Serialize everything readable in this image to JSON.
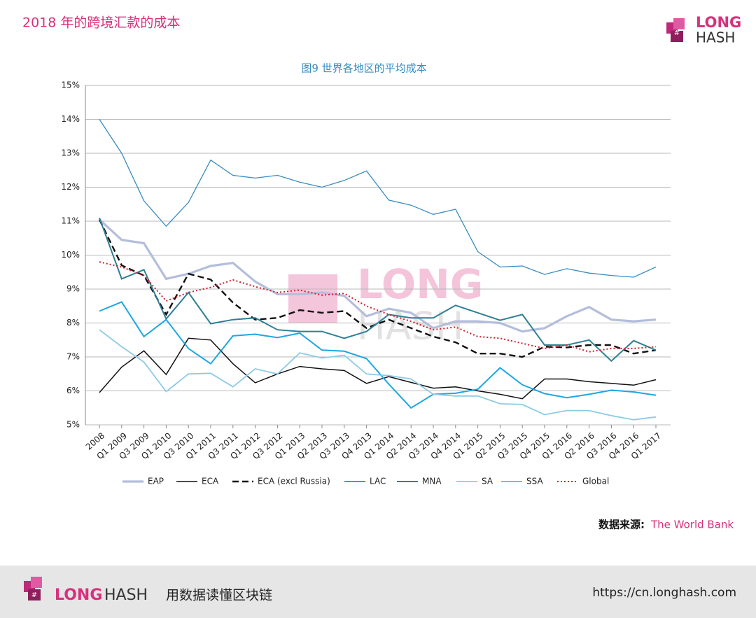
{
  "header": {
    "title": "2018 年的跨境汇款的成本",
    "logo_top": "LONG",
    "logo_bottom": "HASH"
  },
  "watermark": {
    "top": "LONG",
    "bottom": "HASH"
  },
  "source": {
    "label": "数据来源:",
    "value": "The World Bank"
  },
  "footer": {
    "logo_left": "LONG",
    "logo_right": "HASH",
    "slogan": "用数据读懂区块链",
    "url": "https://cn.longhash.com"
  },
  "chart_data": {
    "type": "line",
    "title": "图9 世界各地区的平均成本",
    "categories": [
      "2008",
      "Q1 2009",
      "Q3 2009",
      "Q1 2010",
      "Q3 2010",
      "Q1 2011",
      "Q3 2011",
      "Q1 2012",
      "Q3 2012",
      "Q1 2013",
      "Q2 2013",
      "Q3 2013",
      "Q4 2013",
      "Q1 2014",
      "Q2 2014",
      "Q3 2014",
      "Q4 2014",
      "Q1 2015",
      "Q2 2015",
      "Q3 2015",
      "Q4 2015",
      "Q1 2016",
      "Q2 2016",
      "Q3 2016",
      "Q4 2016",
      "Q1 2017"
    ],
    "ylim": [
      5,
      15
    ],
    "yticks": [
      {
        "value": 5,
        "label": "5%"
      },
      {
        "value": 6,
        "label": "6%"
      },
      {
        "value": 7,
        "label": "7%"
      },
      {
        "value": 8,
        "label": "8%"
      },
      {
        "value": 9,
        "label": "9%"
      },
      {
        "value": 10,
        "label": "10%"
      },
      {
        "value": 11,
        "label": "11%"
      },
      {
        "value": 12,
        "label": "12%"
      },
      {
        "value": 13,
        "label": "13%"
      },
      {
        "value": 14,
        "label": "14%"
      },
      {
        "value": 15,
        "label": "15%"
      }
    ],
    "grid": true,
    "legend": "bottom",
    "series": [
      {
        "name": "EAP",
        "color": "#b4bedc",
        "line_style": "solid",
        "values": [
          11.05,
          10.45,
          10.35,
          9.3,
          9.45,
          9.68,
          9.77,
          9.22,
          8.85,
          8.85,
          8.9,
          8.8,
          8.2,
          8.42,
          8.3,
          7.85,
          8.05,
          8.05,
          8.0,
          7.75,
          7.85,
          8.2,
          8.47,
          8.1,
          8.05,
          8.1
        ]
      },
      {
        "name": "ECA",
        "color": "#111111",
        "line_style": "solid",
        "values": [
          5.95,
          6.7,
          7.18,
          6.48,
          7.55,
          7.5,
          6.8,
          6.24,
          6.5,
          6.72,
          6.65,
          6.6,
          6.22,
          6.42,
          6.25,
          6.08,
          6.12,
          6.0,
          5.9,
          5.77,
          6.35,
          6.35,
          6.27,
          6.22,
          6.17,
          6.33
        ]
      },
      {
        "name": "ECA (excl Russia)",
        "color": "#111111",
        "line_style": "dashed",
        "values": [
          11.05,
          9.7,
          9.4,
          8.25,
          9.45,
          9.28,
          8.6,
          8.1,
          8.15,
          8.38,
          8.3,
          8.35,
          7.85,
          8.1,
          7.85,
          7.6,
          7.43,
          7.1,
          7.1,
          7.0,
          7.3,
          7.28,
          7.35,
          7.35,
          7.1,
          7.2
        ]
      },
      {
        "name": "LAC",
        "color": "#1ea7e1",
        "line_style": "solid",
        "values": [
          8.35,
          8.62,
          7.6,
          8.1,
          7.25,
          6.8,
          7.62,
          7.67,
          7.57,
          7.7,
          7.2,
          7.17,
          6.95,
          6.2,
          5.5,
          5.9,
          5.93,
          6.05,
          6.68,
          6.18,
          5.92,
          5.8,
          5.9,
          6.02,
          5.97,
          5.87
        ]
      },
      {
        "name": "MNA",
        "color": "#2f7f95",
        "line_style": "solid",
        "values": [
          11.1,
          9.3,
          9.57,
          8.12,
          8.9,
          7.98,
          8.1,
          8.15,
          7.8,
          7.75,
          7.75,
          7.55,
          7.75,
          8.25,
          8.15,
          8.15,
          8.52,
          8.3,
          8.08,
          8.25,
          7.35,
          7.35,
          7.5,
          6.88,
          7.48,
          7.2
        ]
      },
      {
        "name": "SA",
        "color": "#8ecae6",
        "line_style": "solid",
        "values": [
          7.8,
          7.3,
          6.85,
          5.98,
          6.5,
          6.52,
          6.12,
          6.65,
          6.5,
          7.12,
          6.97,
          7.05,
          6.5,
          6.45,
          6.35,
          5.9,
          5.85,
          5.85,
          5.62,
          5.6,
          5.3,
          5.42,
          5.42,
          5.27,
          5.15,
          5.23
        ]
      },
      {
        "name": "SSA",
        "color": "#3a8bbf",
        "line_style": "solid",
        "values": [
          14.0,
          13.0,
          11.6,
          10.85,
          11.55,
          12.8,
          12.35,
          12.27,
          12.35,
          12.15,
          12.0,
          12.2,
          12.48,
          11.62,
          11.47,
          11.2,
          11.35,
          10.1,
          9.65,
          9.68,
          9.43,
          9.6,
          9.47,
          9.4,
          9.35,
          9.65
        ]
      },
      {
        "name": "Global",
        "color": "#d0202b",
        "line_style": "dotted",
        "values": [
          9.8,
          9.65,
          9.4,
          8.65,
          8.9,
          9.05,
          9.27,
          9.07,
          8.9,
          8.97,
          8.82,
          8.87,
          8.5,
          8.25,
          8.05,
          7.8,
          7.88,
          7.6,
          7.55,
          7.4,
          7.25,
          7.35,
          7.15,
          7.25,
          7.25,
          7.3
        ]
      }
    ]
  }
}
